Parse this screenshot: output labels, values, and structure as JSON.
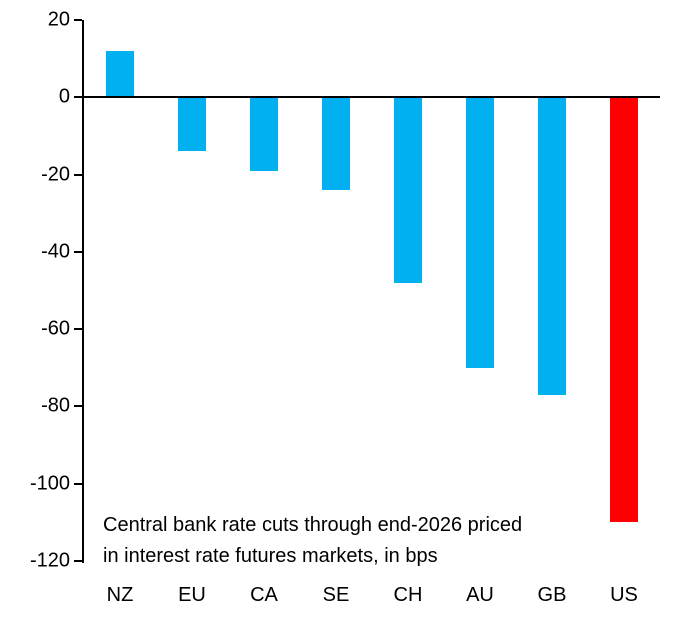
{
  "chart_data": {
    "type": "bar",
    "categories": [
      "NZ",
      "EU",
      "CA",
      "SE",
      "CH",
      "AU",
      "GB",
      "US"
    ],
    "values": [
      12,
      -14,
      -19,
      -24,
      -48,
      -70,
      -77,
      -110
    ],
    "bar_colors": [
      "#00B0F0",
      "#00B0F0",
      "#00B0F0",
      "#00B0F0",
      "#00B0F0",
      "#00B0F0",
      "#00B0F0",
      "#FF0000"
    ],
    "title": "",
    "xlabel": "",
    "ylabel": "",
    "ylim": [
      -120,
      20
    ],
    "yticks": [
      20,
      0,
      -20,
      -40,
      -60,
      -80,
      -100,
      -120
    ],
    "grid": false,
    "legend": "none",
    "axis_color": "#000000",
    "annotation_lines": [
      "Central bank rate cuts through end-2026 priced",
      "in interest rate futures markets, in bps"
    ]
  }
}
